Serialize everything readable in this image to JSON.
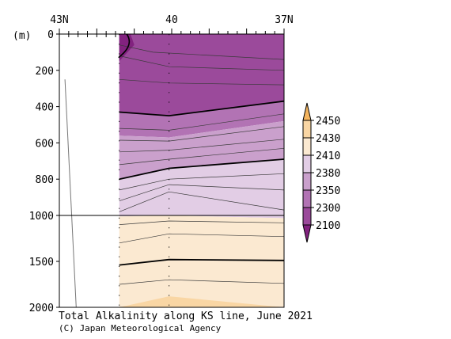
{
  "chart_data": {
    "type": "contour",
    "title": "Total Alkalinity along KS line, June 2021",
    "credit": "(C) Japan Meteorological Agency",
    "y_unit": "(m)",
    "x_ticks": [
      {
        "label": "43N",
        "lat": 43
      },
      {
        "label": "40",
        "lat": 40
      },
      {
        "label": "37N",
        "lat": 37
      }
    ],
    "y_ticks_upper": [
      0,
      200,
      400,
      600,
      800,
      1000
    ],
    "y_ticks_lower": [
      1500,
      2000
    ],
    "y_break_depth": 1000,
    "colorbar_levels": [
      2450,
      2430,
      2410,
      2380,
      2350,
      2300,
      2100
    ],
    "colors": {
      "band_2100_2300": "#9b4a9b",
      "band_2300_2350": "#b273b4",
      "band_2350_2380": "#caa0cc",
      "band_2380_2410": "#e2cde5",
      "band_2410_2430": "#fbe9d1",
      "band_2430_2450": "#f9d6a4",
      "above_2450": "#f4b45e",
      "below_2100": "#82227f"
    },
    "data_extent_lat": [
      41.42,
      37.0
    ],
    "bottom_depth_profile": [
      {
        "lat": 42.85,
        "depth": 250
      },
      {
        "lat": 42.55,
        "depth": 2000
      }
    ],
    "thick_contours": [
      {
        "value": 2300,
        "points": [
          [
            41.4,
            430
          ],
          [
            40.07,
            450
          ],
          [
            37.0,
            370
          ]
        ]
      },
      {
        "value": 2350,
        "points": [
          [
            41.4,
            800
          ],
          [
            40.07,
            740
          ],
          [
            37.0,
            690
          ]
        ]
      },
      {
        "value": 2410,
        "points": [
          [
            41.4,
            1540
          ],
          [
            40.07,
            1480
          ],
          [
            37.0,
            1490
          ]
        ]
      }
    ],
    "thin_contours": [
      {
        "points": [
          [
            41.4,
            520
          ],
          [
            40.07,
            530
          ],
          [
            37.0,
            440
          ]
        ]
      },
      {
        "points": [
          [
            41.4,
            585
          ],
          [
            40.07,
            590
          ],
          [
            37.0,
            510
          ]
        ]
      },
      {
        "points": [
          [
            41.4,
            650
          ],
          [
            40.07,
            640
          ],
          [
            37.0,
            580
          ]
        ]
      },
      {
        "points": [
          [
            41.4,
            720
          ],
          [
            40.07,
            690
          ],
          [
            37.0,
            630
          ]
        ]
      },
      {
        "points": [
          [
            41.4,
            860
          ],
          [
            40.07,
            800
          ],
          [
            37.0,
            770
          ]
        ]
      },
      {
        "points": [
          [
            41.4,
            920
          ],
          [
            40.07,
            830
          ],
          [
            37.0,
            860
          ]
        ]
      },
      {
        "points": [
          [
            41.4,
            980
          ],
          [
            40.07,
            870
          ],
          [
            37.0,
            970
          ]
        ]
      },
      {
        "points": [
          [
            41.4,
            1100
          ],
          [
            40.07,
            1060
          ],
          [
            37.0,
            1080
          ]
        ]
      },
      {
        "points": [
          [
            41.4,
            1300
          ],
          [
            40.07,
            1200
          ],
          [
            37.0,
            1230
          ]
        ]
      },
      {
        "points": [
          [
            41.4,
            1750
          ],
          [
            40.07,
            1700
          ],
          [
            37.0,
            1740
          ]
        ]
      },
      {
        "points": [
          [
            41.4,
            120
          ],
          [
            40.07,
            180
          ],
          [
            37.0,
            200
          ]
        ]
      },
      {
        "points": [
          [
            41.4,
            60
          ],
          [
            40.5,
            100
          ],
          [
            37.0,
            140
          ]
        ]
      },
      {
        "points": [
          [
            41.4,
            250
          ],
          [
            40.07,
            270
          ],
          [
            37.0,
            280
          ]
        ]
      }
    ],
    "station_lats": [
      41.4,
      40.07,
      37.0
    ]
  }
}
